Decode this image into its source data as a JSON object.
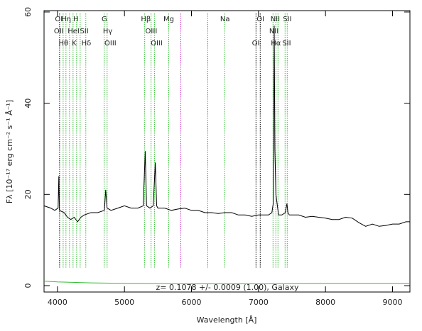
{
  "chart_data": {
    "type": "line",
    "xlabel": "Wavelength [Å]",
    "ylabel": "Fλ [10⁻¹⁷ erg cm⁻² s⁻¹ Å⁻¹]",
    "annotation": "z= 0.1078 +/- 0.0009 (1.00), Galaxy",
    "xlim": [
      3800,
      9260
    ],
    "ylim": [
      -1.4,
      60.3
    ],
    "xticks": [
      4000,
      5000,
      6000,
      7000,
      8000,
      9000
    ],
    "yticks": [
      0,
      20,
      40,
      60
    ],
    "series": [
      {
        "color": "#000000",
        "x": [
          3800,
          3900,
          3960,
          4010,
          4020,
          4030,
          4100,
          4150,
          4200,
          4250,
          4300,
          4350,
          4400,
          4500,
          4600,
          4700,
          4720,
          4740,
          4800,
          4900,
          5000,
          5100,
          5200,
          5280,
          5310,
          5330,
          5380,
          5430,
          5460,
          5480,
          5500,
          5600,
          5700,
          5800,
          5900,
          6000,
          6100,
          6200,
          6300,
          6400,
          6500,
          6600,
          6700,
          6800,
          6900,
          7000,
          7100,
          7150,
          7200,
          7220,
          7235,
          7245,
          7260,
          7300,
          7350,
          7400,
          7425,
          7440,
          7460,
          7500,
          7600,
          7700,
          7800,
          7900,
          8000,
          8100,
          8200,
          8300,
          8400,
          8500,
          8600,
          8700,
          8800,
          8900,
          9000,
          9100,
          9200,
          9260
        ],
        "values": [
          17.5,
          17,
          16.5,
          17,
          24,
          16.5,
          16,
          15,
          14.5,
          15,
          14,
          15,
          15.5,
          16,
          16,
          16.5,
          21,
          17,
          16.5,
          17,
          17.5,
          17,
          17,
          17.5,
          29.5,
          17.5,
          17,
          17.5,
          27,
          17.5,
          17,
          17,
          16.5,
          16.8,
          17,
          16.5,
          16.5,
          16,
          16,
          15.8,
          16,
          16,
          15.5,
          15.5,
          15.2,
          15.5,
          15.5,
          15.5,
          16,
          18,
          57,
          30,
          20,
          15.5,
          15.5,
          16,
          18,
          16,
          15.5,
          15.5,
          15.5,
          15,
          15.2,
          15,
          14.8,
          14.5,
          14.5,
          15,
          14.8,
          13.8,
          13,
          13.5,
          13,
          13.2,
          13.5,
          13.5,
          14,
          14
        ]
      },
      {
        "color": "#33bb33",
        "x": [
          3800,
          4000,
          4500,
          5000,
          6000,
          7000,
          8000,
          9260
        ],
        "values": [
          1,
          0.8,
          0.6,
          0.5,
          0.4,
          0.4,
          0.5,
          0.5
        ]
      }
    ],
    "lines": [
      {
        "x": 4032,
        "color": "#000000"
      },
      {
        "x": 4085,
        "color": "#33bb33"
      },
      {
        "x": 4127,
        "color": "#33bb33"
      },
      {
        "x": 4180,
        "color": "#33bb33"
      },
      {
        "x": 4233,
        "color": "#33bb33"
      },
      {
        "x": 4286,
        "color": "#33bb33"
      },
      {
        "x": 4339,
        "color": "#33bb33"
      },
      {
        "x": 4423,
        "color": "#33bb33"
      },
      {
        "x": 4698,
        "color": "#33bb33"
      },
      {
        "x": 4741,
        "color": "#33bb33"
      },
      {
        "x": 5302,
        "color": "#33bb33"
      },
      {
        "x": 5397,
        "color": "#33bb33"
      },
      {
        "x": 5450,
        "color": "#33bb33"
      },
      {
        "x": 5661,
        "color": "#33bb33"
      },
      {
        "x": 5841,
        "color": "#cc33cc"
      },
      {
        "x": 6243,
        "color": "#cc33cc"
      },
      {
        "x": 6497,
        "color": "#33bb33"
      },
      {
        "x": 6963,
        "color": "#000000"
      },
      {
        "x": 7026,
        "color": "#000000"
      },
      {
        "x": 7217,
        "color": "#33bb33"
      },
      {
        "x": 7259,
        "color": "#33bb33"
      },
      {
        "x": 7291,
        "color": "#33bb33"
      },
      {
        "x": 7397,
        "color": "#33bb33"
      },
      {
        "x": 7429,
        "color": "#33bb33"
      }
    ],
    "line_label_rows": [
      [
        {
          "label": "OI",
          "x": 4020
        },
        {
          "label": "Hη",
          "x": 4130
        },
        {
          "label": "H",
          "x": 4275
        },
        {
          "label": "G",
          "x": 4700
        },
        {
          "label": "Hβ",
          "x": 5320
        },
        {
          "label": "Mg",
          "x": 5660
        },
        {
          "label": "Na",
          "x": 6500
        },
        {
          "label": "OI",
          "x": 7030
        },
        {
          "label": "NII",
          "x": 7250
        },
        {
          "label": "SII",
          "x": 7430
        }
      ],
      [
        {
          "label": "OII",
          "x": 4020
        },
        {
          "label": "HeI",
          "x": 4240
        },
        {
          "label": "SII",
          "x": 4400
        },
        {
          "label": "Hγ",
          "x": 4750
        },
        {
          "label": "OIII",
          "x": 5400
        },
        {
          "label": "NII",
          "x": 7230
        }
      ],
      [
        {
          "label": "Hθ",
          "x": 4090
        },
        {
          "label": "K",
          "x": 4250
        },
        {
          "label": "Hδ",
          "x": 4430
        },
        {
          "label": "OIII",
          "x": 4790
        },
        {
          "label": "OIII",
          "x": 5480
        },
        {
          "label": "OI",
          "x": 6960
        },
        {
          "label": "Hα",
          "x": 7260
        },
        {
          "label": "SII",
          "x": 7420
        }
      ]
    ]
  }
}
